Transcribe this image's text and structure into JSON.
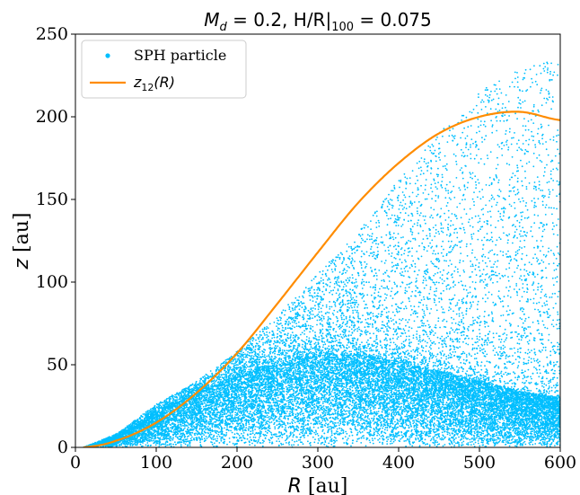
{
  "chart_data": {
    "type": "scatter",
    "title": "M_d = 0.2, H/R|_100 = 0.075",
    "title_parts": {
      "m": "M",
      "d": "d",
      "eq1": " = 0.2, H/R|",
      "sub": "100",
      "eq2": " = 0.075"
    },
    "xlabel": "R [au]",
    "xlabel_parts": {
      "var": "R",
      "unit": " [au]"
    },
    "ylabel": "z [au]",
    "ylabel_parts": {
      "var": "z",
      "unit": " [au]"
    },
    "xlim": [
      0,
      600
    ],
    "ylim": [
      0,
      250
    ],
    "xticks": [
      0,
      100,
      200,
      300,
      400,
      500,
      600
    ],
    "yticks": [
      0,
      50,
      100,
      150,
      200,
      250
    ],
    "grid": false,
    "legend_position": "top-left",
    "legend": [
      {
        "label": "SPH particle",
        "marker": "dot",
        "color": "#00bfff"
      },
      {
        "label": "z12(R)",
        "label_parts": {
          "var": "z",
          "sub": "12",
          "rest": "(R)"
        },
        "marker": "line",
        "color": "#ff8c00"
      }
    ],
    "series": [
      {
        "name": "SPH particle",
        "kind": "scatter",
        "color": "#00bfff",
        "x_range": [
          10,
          600
        ],
        "envelope_outer": {
          "x": [
            10,
            50,
            100,
            150,
            200,
            250,
            300,
            350,
            400,
            450,
            500,
            550,
            600
          ],
          "y": [
            0,
            8,
            26,
            40,
            58,
            80,
            105,
            130,
            162,
            190,
            215,
            230,
            235
          ]
        },
        "dense_core": {
          "x": [
            10,
            50,
            100,
            150,
            200,
            250,
            300,
            350,
            400,
            450,
            500,
            550,
            600
          ],
          "y": [
            0,
            6,
            20,
            32,
            42,
            50,
            55,
            56,
            52,
            46,
            40,
            34,
            30
          ]
        }
      },
      {
        "name": "z12(R)",
        "kind": "line",
        "color": "#ff8c00",
        "x": [
          10,
          50,
          100,
          150,
          200,
          250,
          300,
          350,
          400,
          450,
          500,
          550,
          600
        ],
        "y": [
          0,
          4,
          15,
          33,
          57,
          87,
          118,
          148,
          172,
          190,
          200,
          203,
          198
        ]
      }
    ]
  }
}
